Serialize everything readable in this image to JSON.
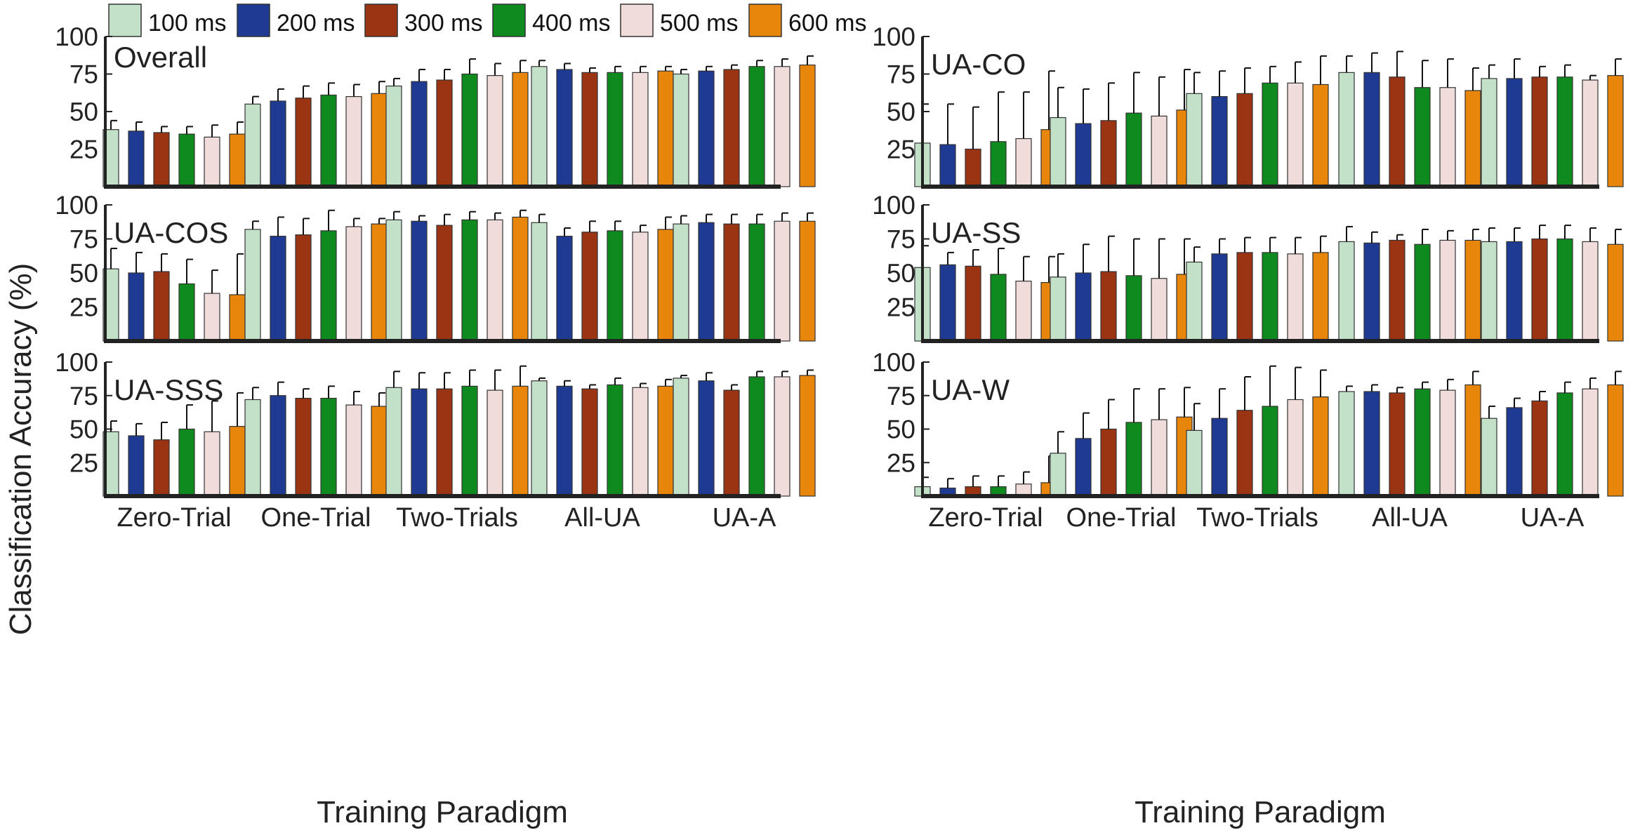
{
  "chart_data": {
    "type": "bar",
    "ylabel": "Classification Accuracy (%)",
    "xlabel": "Training Paradigm",
    "yticks": [
      25,
      50,
      75,
      100
    ],
    "ylim": [
      0,
      100
    ],
    "categories": [
      "Zero-Trial",
      "One-Trial",
      "Two-Trials",
      "All-UA",
      "UA-A"
    ],
    "series_names": [
      "100 ms",
      "200 ms",
      "300 ms",
      "400 ms",
      "500 ms",
      "600 ms"
    ],
    "colors": [
      "#c3e0c9",
      "#1f3a93",
      "#9a3412",
      "#0f8a1e",
      "#f1dcdc",
      "#e8860c"
    ],
    "panels": [
      {
        "title": "Overall",
        "values": [
          [
            38,
            37,
            36,
            35,
            33,
            35
          ],
          [
            55,
            57,
            59,
            61,
            60,
            62
          ],
          [
            67,
            70,
            71,
            75,
            74,
            76
          ],
          [
            80,
            78,
            76,
            76,
            76,
            77
          ],
          [
            75,
            77,
            78,
            80,
            80,
            81
          ]
        ],
        "errors": [
          [
            6,
            6,
            4,
            5,
            8,
            8
          ],
          [
            5,
            8,
            8,
            8,
            8,
            8
          ],
          [
            5,
            8,
            7,
            10,
            8,
            8
          ],
          [
            4,
            4,
            3,
            4,
            4,
            3
          ],
          [
            3,
            3,
            3,
            4,
            5,
            6
          ]
        ]
      },
      {
        "title": "UA-CO",
        "values": [
          [
            29,
            28,
            25,
            30,
            32,
            38
          ],
          [
            46,
            42,
            44,
            49,
            47,
            51
          ],
          [
            62,
            60,
            62,
            69,
            69,
            68
          ],
          [
            76,
            76,
            73,
            66,
            66,
            64
          ],
          [
            72,
            72,
            73,
            73,
            71,
            74
          ]
        ],
        "errors": [
          [
            26,
            27,
            28,
            33,
            31,
            39
          ],
          [
            20,
            23,
            25,
            27,
            26,
            27
          ],
          [
            14,
            17,
            17,
            11,
            14,
            19
          ],
          [
            11,
            13,
            17,
            18,
            19,
            15
          ],
          [
            9,
            13,
            7,
            8,
            3,
            11
          ]
        ]
      },
      {
        "title": "UA-COS",
        "values": [
          [
            53,
            50,
            51,
            42,
            35,
            34
          ],
          [
            82,
            77,
            78,
            81,
            84,
            86
          ],
          [
            89,
            88,
            85,
            89,
            89,
            91
          ],
          [
            87,
            77,
            80,
            81,
            80,
            82
          ],
          [
            86,
            87,
            86,
            86,
            88,
            88
          ]
        ],
        "errors": [
          [
            15,
            15,
            13,
            18,
            17,
            30
          ],
          [
            6,
            14,
            12,
            15,
            6,
            4
          ],
          [
            6,
            4,
            8,
            6,
            5,
            5
          ],
          [
            6,
            6,
            8,
            7,
            5,
            9
          ],
          [
            6,
            6,
            7,
            7,
            6,
            6
          ]
        ]
      },
      {
        "title": "UA-SS",
        "values": [
          [
            54,
            56,
            55,
            49,
            44,
            43
          ],
          [
            47,
            50,
            51,
            48,
            46,
            49
          ],
          [
            58,
            64,
            65,
            65,
            64,
            65
          ],
          [
            73,
            72,
            74,
            71,
            74,
            74
          ],
          [
            73,
            73,
            75,
            75,
            73,
            71
          ]
        ],
        "errors": [
          [
            16,
            9,
            12,
            19,
            18,
            19
          ],
          [
            17,
            21,
            26,
            27,
            29,
            26
          ],
          [
            11,
            11,
            11,
            11,
            12,
            12
          ],
          [
            11,
            8,
            4,
            11,
            7,
            8
          ],
          [
            10,
            10,
            10,
            10,
            10,
            11
          ]
        ]
      },
      {
        "title": "UA-SSS",
        "values": [
          [
            48,
            45,
            42,
            50,
            48,
            52
          ],
          [
            72,
            75,
            73,
            73,
            68,
            67
          ],
          [
            81,
            80,
            80,
            82,
            79,
            82
          ],
          [
            86,
            82,
            80,
            83,
            81,
            82
          ],
          [
            88,
            86,
            79,
            89,
            89,
            90
          ]
        ],
        "errors": [
          [
            8,
            9,
            13,
            18,
            23,
            25
          ],
          [
            9,
            10,
            7,
            9,
            10,
            10
          ],
          [
            12,
            12,
            12,
            12,
            15,
            15
          ],
          [
            2,
            4,
            3,
            5,
            3,
            5
          ],
          [
            2,
            6,
            4,
            4,
            4,
            4
          ]
        ]
      },
      {
        "title": "UA-W",
        "values": [
          [
            7,
            6,
            7,
            7,
            9,
            10
          ],
          [
            32,
            43,
            50,
            55,
            57,
            59
          ],
          [
            49,
            58,
            64,
            67,
            72,
            74
          ],
          [
            78,
            78,
            77,
            80,
            79,
            83
          ],
          [
            58,
            66,
            71,
            77,
            80,
            83
          ]
        ],
        "errors": [
          [
            7,
            7,
            8,
            8,
            9,
            20
          ],
          [
            16,
            19,
            22,
            25,
            23,
            22
          ],
          [
            20,
            22,
            25,
            30,
            24,
            20
          ],
          [
            4,
            5,
            4,
            5,
            8,
            10
          ],
          [
            9,
            7,
            7,
            8,
            8,
            10
          ]
        ]
      }
    ]
  }
}
